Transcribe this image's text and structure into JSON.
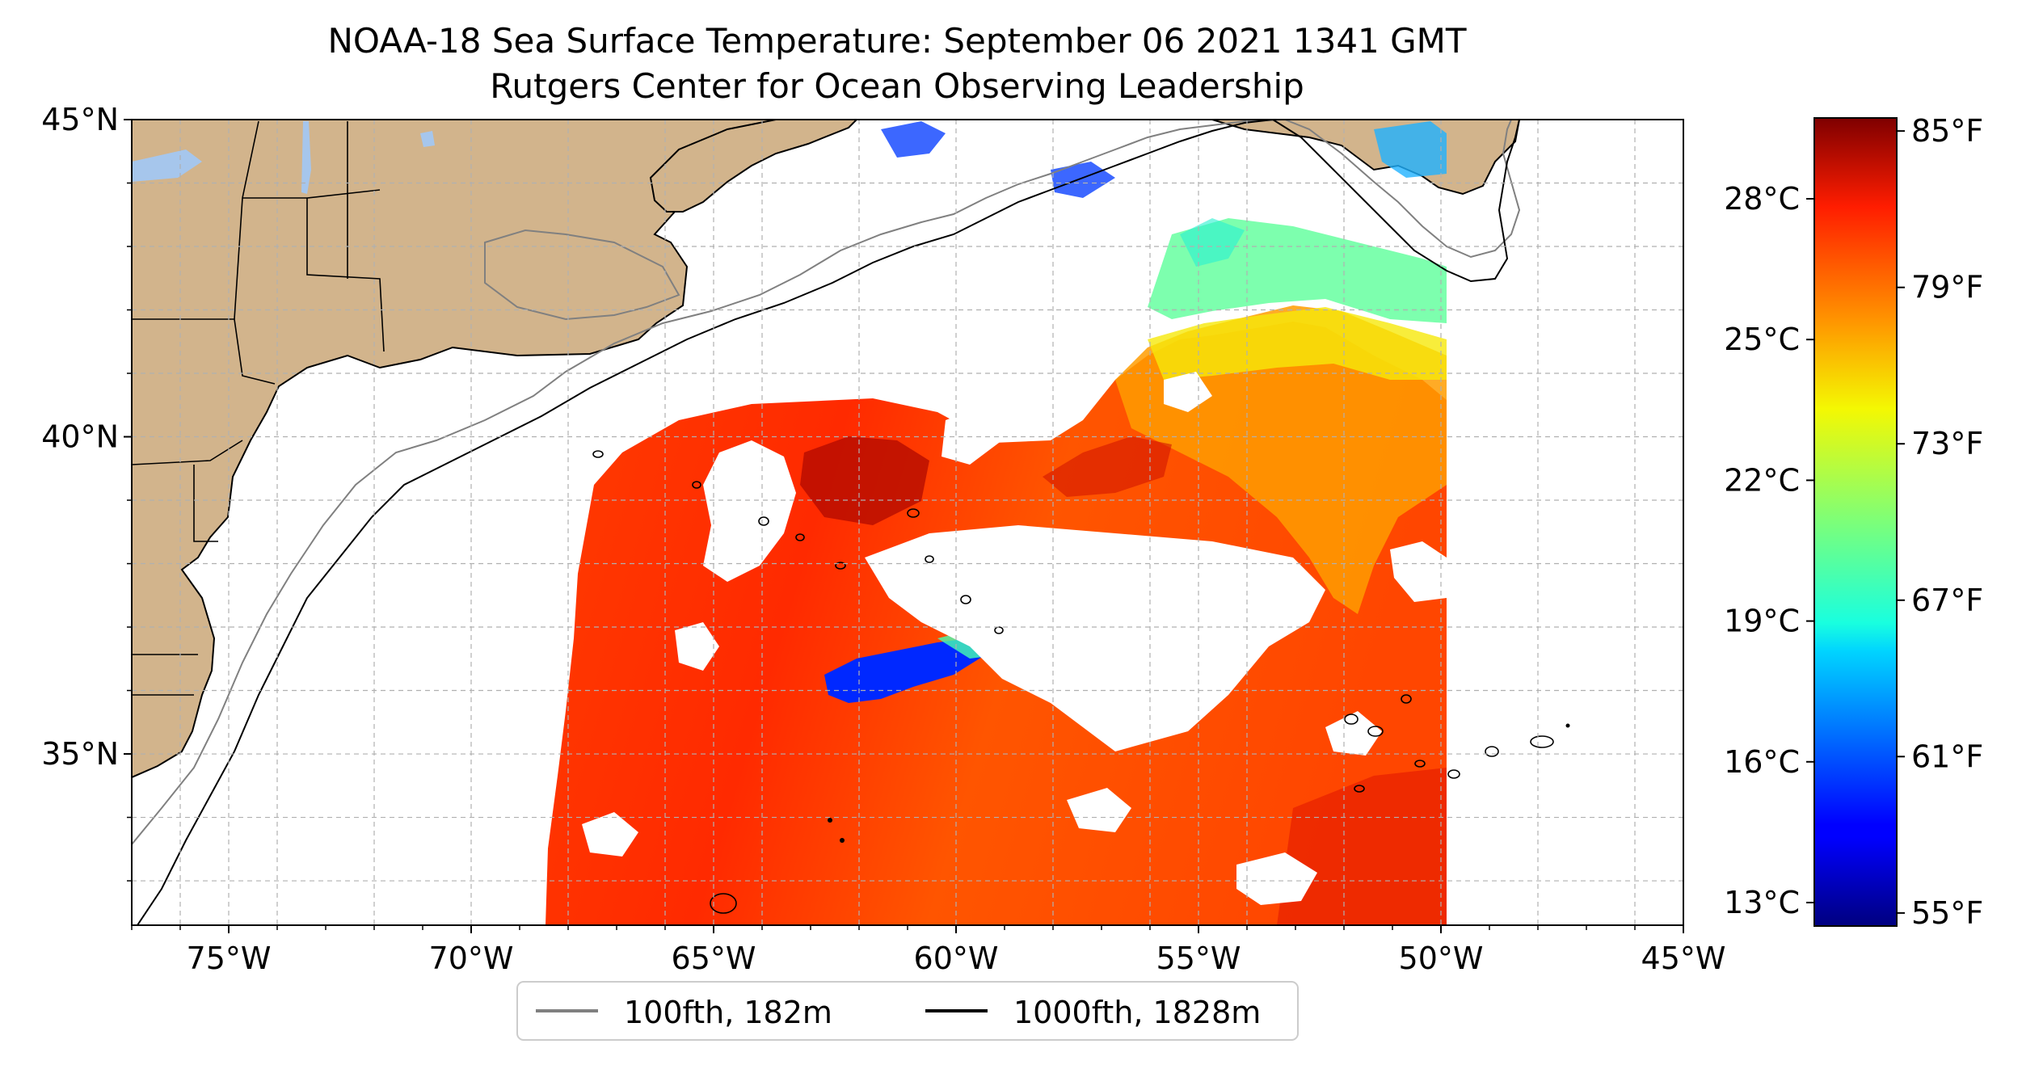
{
  "title": "NOAA-18 Sea Surface Temperature: September 06 2021 1341 GMT",
  "subtitle": "Rutgers Center for Ocean Observing Leadership",
  "map": {
    "extent": {
      "lon": [
        -77,
        -45
      ],
      "lat": [
        32.3,
        45
      ]
    },
    "lat_ticks": [
      {
        "value": 45,
        "label": "45°N"
      },
      {
        "value": 40,
        "label": "40°N"
      },
      {
        "value": 35,
        "label": "35°N"
      }
    ],
    "lon_ticks": [
      {
        "value": -75,
        "label": "75°W"
      },
      {
        "value": -70,
        "label": "70°W"
      },
      {
        "value": -65,
        "label": "65°W"
      },
      {
        "value": -60,
        "label": "60°W"
      },
      {
        "value": -55,
        "label": "55°W"
      },
      {
        "value": -50,
        "label": "50°W"
      },
      {
        "value": -45,
        "label": "45°W"
      }
    ],
    "grid": true,
    "colors": {
      "land": "#d2b48c",
      "lakes": "#a6c6ec",
      "ocean": "#ffffff",
      "contour_100": "#808080",
      "contour_1000": "#000000"
    },
    "legend": {
      "position": "bottom-center",
      "items": [
        {
          "label": "100fth, 182m",
          "color": "#808080"
        },
        {
          "label": "1000fth, 1828m",
          "color": "#000000"
        }
      ]
    }
  },
  "colorbar": {
    "colormap": "jet",
    "range_f": [
      54.5,
      85.5
    ],
    "celsius_ticks": [
      {
        "value": 13,
        "label": "13°C"
      },
      {
        "value": 16,
        "label": "16°C"
      },
      {
        "value": 19,
        "label": "19°C"
      },
      {
        "value": 22,
        "label": "22°C"
      },
      {
        "value": 25,
        "label": "25°C"
      },
      {
        "value": 28,
        "label": "28°C"
      }
    ],
    "fahrenheit_ticks": [
      {
        "value": 55,
        "label": "55°F"
      },
      {
        "value": 61,
        "label": "61°F"
      },
      {
        "value": 67,
        "label": "67°F"
      },
      {
        "value": 73,
        "label": "73°F"
      },
      {
        "value": 79,
        "label": "79°F"
      },
      {
        "value": 85,
        "label": "85°F"
      }
    ]
  }
}
